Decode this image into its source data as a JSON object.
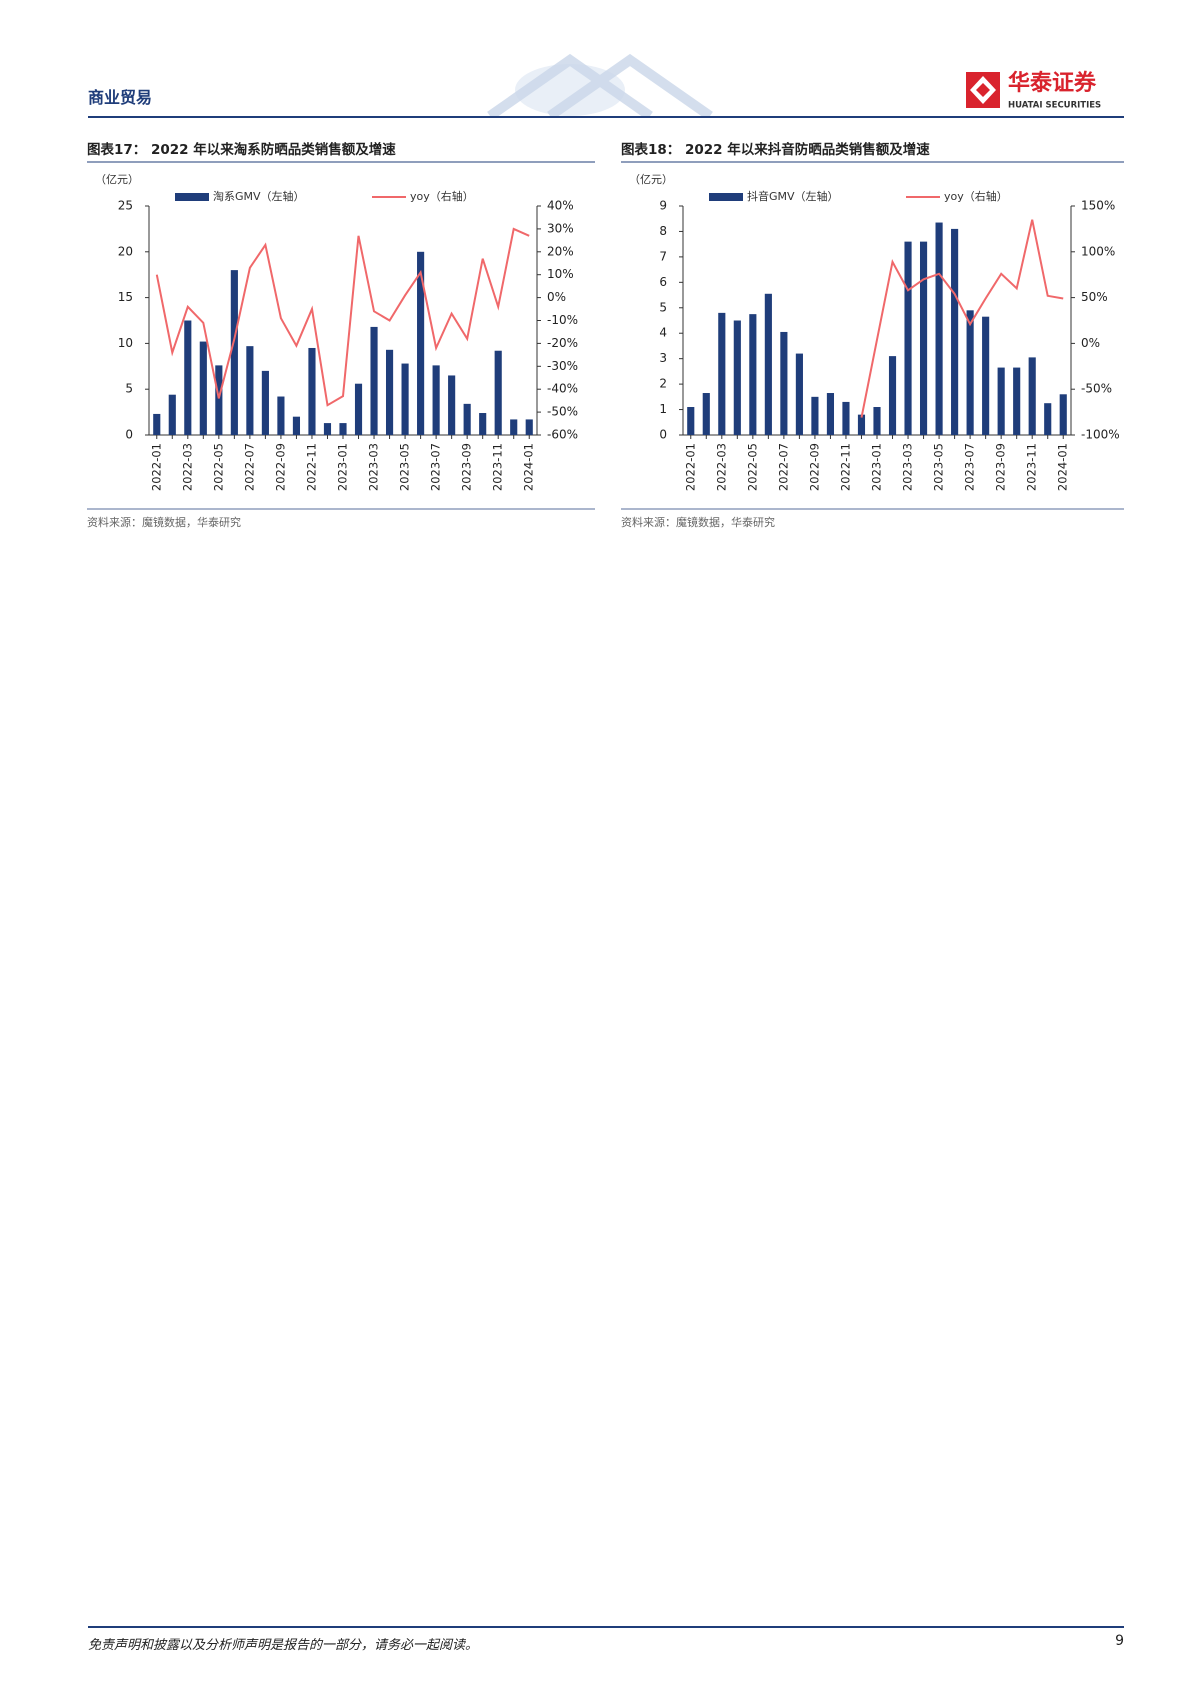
{
  "header": {
    "section": "商业贸易",
    "brand": "华泰证券",
    "brand_en": "HUATAI SECURITIES"
  },
  "chart_data": [
    {
      "type": "combo",
      "title": "图表17： 2022 年以来淘系防晒品类销售额及增速",
      "y_unit": "（亿元）",
      "source": "资料来源：魔镜数据，华泰研究",
      "categories": [
        "2022-01",
        null,
        "2022-03",
        null,
        "2022-05",
        null,
        "2022-07",
        null,
        "2022-09",
        null,
        "2022-11",
        null,
        "2023-01",
        null,
        "2023-03",
        null,
        "2023-05",
        null,
        "2023-07",
        null,
        "2023-09",
        null,
        "2023-11",
        null,
        "2024-01"
      ],
      "ylim": [
        0,
        25
      ],
      "yticks": [
        0,
        5,
        10,
        15,
        20,
        25
      ],
      "y2lim": [
        -60,
        40
      ],
      "y2ticks": [
        {
          "value": -60,
          "label": "-60%"
        },
        {
          "value": -50,
          "label": "-50%"
        },
        {
          "value": -40,
          "label": "-40%"
        },
        {
          "value": -30,
          "label": "-30%"
        },
        {
          "value": -20,
          "label": "-20%"
        },
        {
          "value": -10,
          "label": "-10%"
        },
        {
          "value": 0,
          "label": "0%"
        },
        {
          "value": 10,
          "label": "10%"
        },
        {
          "value": 20,
          "label": "20%"
        },
        {
          "value": 30,
          "label": "30%"
        },
        {
          "value": 40,
          "label": "40%"
        }
      ],
      "series": [
        {
          "name": "淘系GMV（左轴）",
          "type": "bar",
          "color": "#1f3d7a",
          "values": [
            2.3,
            4.4,
            12.5,
            10.2,
            7.6,
            18,
            9.7,
            7.0,
            4.2,
            2.0,
            9.5,
            1.3,
            1.3,
            5.6,
            11.8,
            9.3,
            7.8,
            20,
            7.6,
            6.5,
            3.4,
            2.4,
            9.2,
            1.7,
            1.7
          ]
        },
        {
          "name": "yoy（右轴）",
          "type": "line",
          "axis": "y2",
          "color": "#f0686a",
          "values": [
            10,
            -24,
            -4,
            -11,
            -44,
            -18,
            13,
            23,
            -9,
            -21,
            -5,
            -47,
            -43,
            27,
            -6,
            -10,
            1,
            11,
            -22,
            -7,
            -18,
            17,
            -4,
            30,
            27
          ]
        }
      ]
    },
    {
      "type": "combo",
      "title": "图表18： 2022 年以来抖音防晒品类销售额及增速",
      "y_unit": "（亿元）",
      "source": "资料来源：魔镜数据，华泰研究",
      "categories": [
        "2022-01",
        null,
        "2022-03",
        null,
        "2022-05",
        null,
        "2022-07",
        null,
        "2022-09",
        null,
        "2022-11",
        null,
        "2023-01",
        null,
        "2023-03",
        null,
        "2023-05",
        null,
        "2023-07",
        null,
        "2023-09",
        null,
        "2023-11",
        null,
        "2024-01"
      ],
      "ylim": [
        0,
        9
      ],
      "yticks": [
        0,
        1,
        2,
        3,
        4,
        5,
        6,
        7,
        8,
        9
      ],
      "y2lim": [
        -100,
        150
      ],
      "y2ticks": [
        {
          "value": -100,
          "label": "-100%"
        },
        {
          "value": -50,
          "label": "-50%"
        },
        {
          "value": 0,
          "label": "0%"
        },
        {
          "value": 50,
          "label": "50%"
        },
        {
          "value": 100,
          "label": "100%"
        },
        {
          "value": 150,
          "label": "150%"
        }
      ],
      "series": [
        {
          "name": "抖音GMV（左轴）",
          "type": "bar",
          "color": "#1f3d7a",
          "values": [
            1.1,
            1.65,
            4.8,
            4.5,
            4.75,
            5.55,
            4.05,
            3.2,
            1.5,
            1.65,
            1.3,
            0.8,
            1.1,
            3.1,
            7.6,
            7.6,
            8.35,
            8.1,
            4.9,
            4.65,
            2.65,
            2.65,
            3.05,
            1.25,
            1.6
          ]
        },
        {
          "name": "yoy（右轴）",
          "type": "line",
          "axis": "y2",
          "color": "#f0686a",
          "values": [
            null,
            null,
            null,
            null,
            null,
            null,
            null,
            null,
            null,
            null,
            null,
            -81,
            4,
            89,
            58,
            70,
            76,
            54,
            21,
            49,
            76,
            60,
            135,
            52,
            49
          ]
        }
      ]
    }
  ],
  "footer": {
    "disclaimer": "免责声明和披露以及分析师声明是报告的一部分，请务必一起阅读。",
    "page": "9"
  }
}
